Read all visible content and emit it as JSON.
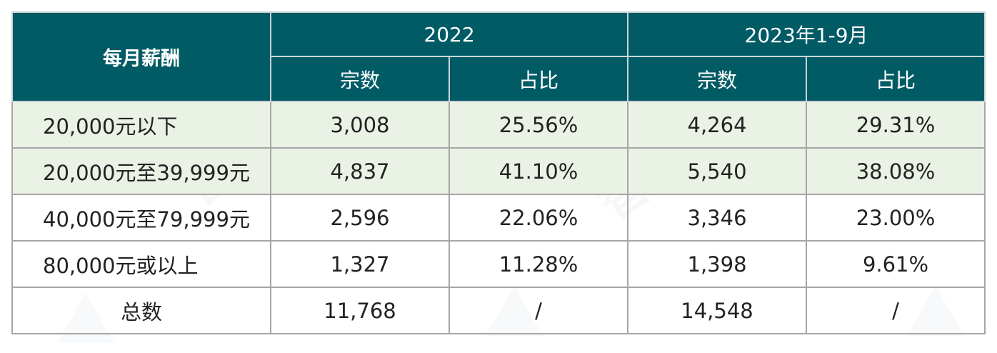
{
  "table": {
    "header": {
      "first_col": "每月薪酬",
      "groups": [
        "2022",
        "2023年1-9月"
      ],
      "subcols": [
        "宗数",
        "占比",
        "宗数",
        "占比"
      ]
    },
    "rows": [
      {
        "label": "20,000元以下",
        "c1": "3,008",
        "c2": "25.56%",
        "c3": "4,264",
        "c4": "29.31%"
      },
      {
        "label": "20,000元至39,999元",
        "c1": "4,837",
        "c2": "41.10%",
        "c3": "5,540",
        "c4": "38.08%"
      },
      {
        "label": "40,000元至79,999元",
        "c1": "2,596",
        "c2": "22.06%",
        "c3": "3,346",
        "c4": "23.00%"
      },
      {
        "label": "80,000元或以上",
        "c1": "1,327",
        "c2": "11.28%",
        "c3": "1,398",
        "c4": "9.61%"
      },
      {
        "label": "总数",
        "c1": "11,768",
        "c2": "/",
        "c3": "14,548",
        "c4": "/"
      }
    ]
  },
  "colors": {
    "header_bg": "#005b65",
    "shaded_row_bg": "#eaf2e6",
    "border": "#a6a6a6"
  }
}
